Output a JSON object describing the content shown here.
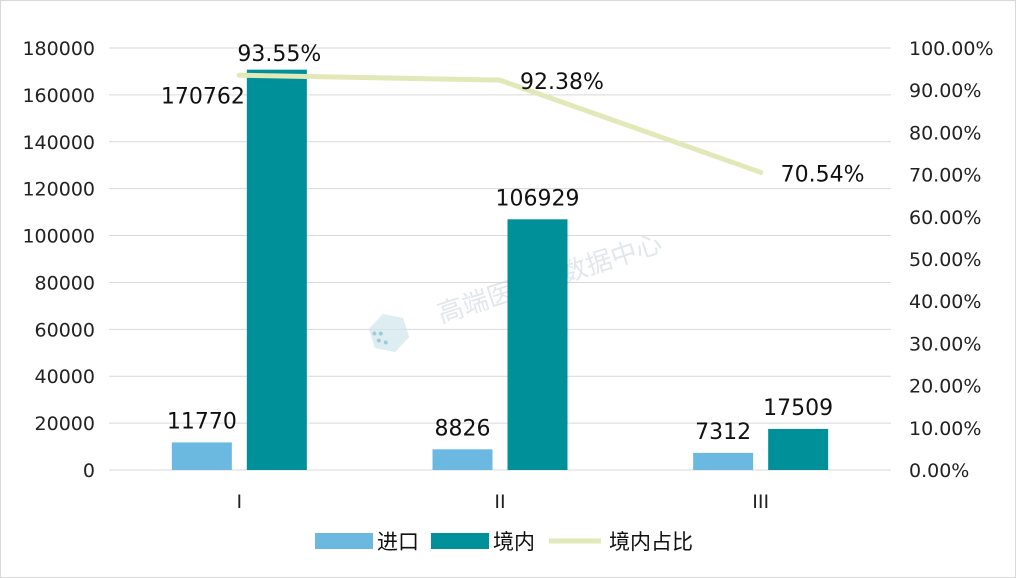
{
  "chart_data": {
    "type": "bar",
    "categories": [
      "I",
      "II",
      "III"
    ],
    "series": [
      {
        "name": "进口",
        "kind": "bar",
        "axis": "left",
        "values": [
          11770,
          8826,
          7312
        ],
        "labels": [
          "11770",
          "8826",
          "7312"
        ],
        "color": "#6bb8e0"
      },
      {
        "name": "境内",
        "kind": "bar",
        "axis": "left",
        "values": [
          170762,
          106929,
          17509
        ],
        "labels": [
          "170762",
          "106929",
          "17509"
        ],
        "color": "#00909a"
      },
      {
        "name": "境内占比",
        "kind": "line",
        "axis": "right",
        "values": [
          93.55,
          92.38,
          70.54
        ],
        "labels": [
          "93.55%",
          "92.38%",
          "70.54%"
        ],
        "color": "#e3e8b8"
      }
    ],
    "y_left": {
      "min": 0,
      "max": 180000,
      "step": 20000,
      "ticks": [
        "0",
        "20000",
        "40000",
        "60000",
        "80000",
        "100000",
        "120000",
        "140000",
        "160000",
        "180000"
      ]
    },
    "y_right": {
      "min": 0,
      "max": 100,
      "step": 10,
      "ticks": [
        "0.00%",
        "10.00%",
        "20.00%",
        "30.00%",
        "40.00%",
        "50.00%",
        "60.00%",
        "70.00%",
        "80.00%",
        "90.00%",
        "100.00%"
      ]
    },
    "grid": true,
    "legend": {
      "position": "bottom"
    },
    "watermark": "高端医械院数据中心"
  }
}
